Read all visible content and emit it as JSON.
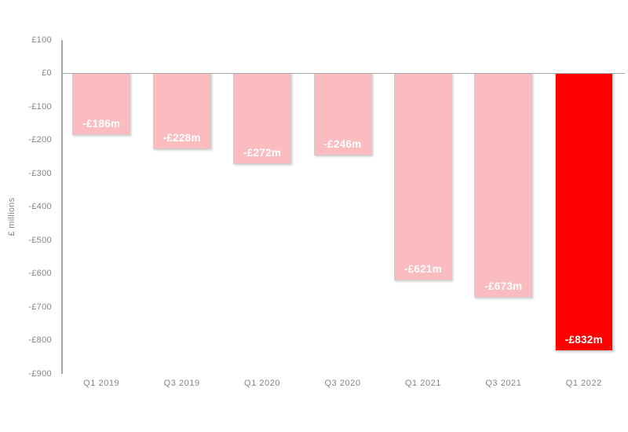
{
  "chart_data": {
    "type": "bar",
    "title": "",
    "xlabel": "",
    "ylabel": "£ millions",
    "categories": [
      "Q1 2019",
      "Q3 2019",
      "Q1 2020",
      "Q3 2020",
      "Q1 2021",
      "Q3 2021",
      "Q1 2022"
    ],
    "values": [
      -186,
      -228,
      -272,
      -246,
      -621,
      -673,
      -832
    ],
    "bar_labels": [
      "-£186m",
      "-£228m",
      "-£272m",
      "-£246m",
      "-£621m",
      "-£673m",
      "-£832m"
    ],
    "ylim": [
      -900,
      100
    ],
    "ytick_step": 100,
    "yticks": [
      100,
      0,
      -100,
      -200,
      -300,
      -400,
      -500,
      -600,
      -700,
      -800,
      -900
    ],
    "ytick_labels": [
      "£100",
      "£0",
      "-£100",
      "-£200",
      "-£300",
      "-£400",
      "-£500",
      "-£600",
      "-£700",
      "-£800",
      "-£900"
    ],
    "grid": "zero-baseline-only",
    "legend": "none",
    "highlight_index": 6,
    "colors": {
      "bar_default": "#FABCBF",
      "bar_highlight": "#FF0000",
      "axis_line": "#a6a6a6",
      "tick_text": "#858585",
      "bar_label_text": "#FFFFFF"
    }
  }
}
